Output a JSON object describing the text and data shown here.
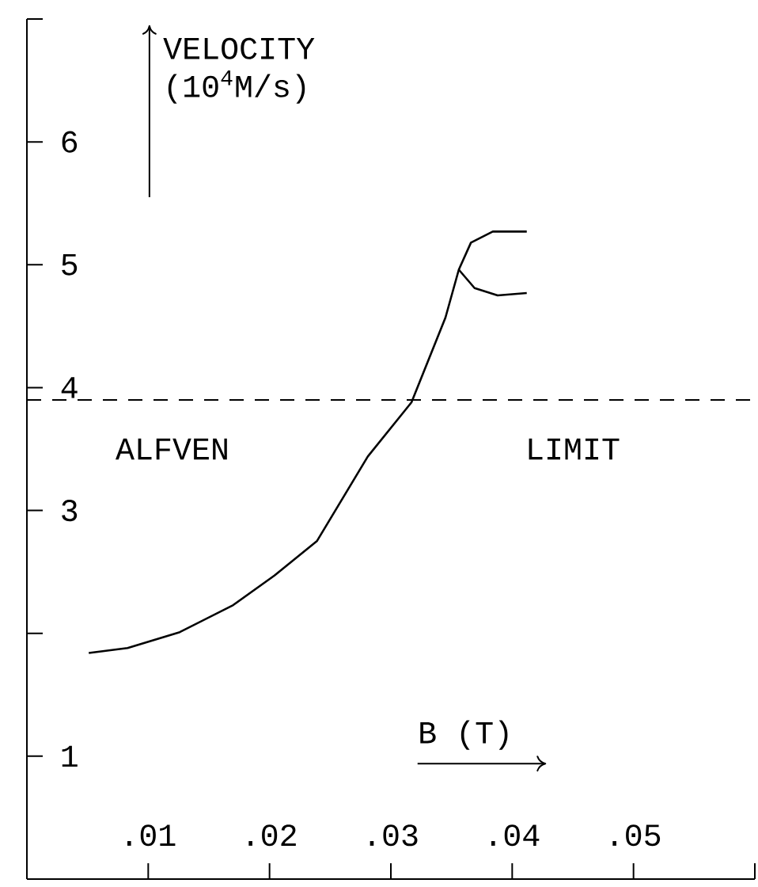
{
  "chart_data": {
    "type": "line",
    "ylabel": "VELOCITY (10$^{4}$M/s)",
    "xlabel": "B (T)",
    "xlim": [
      0,
      0.06
    ],
    "xticks": [
      {
        "value": 0.01,
        "label": ".01"
      },
      {
        "value": 0.02,
        "label": ".02"
      },
      {
        "value": 0.03,
        "label": ".03"
      },
      {
        "value": 0.04,
        "label": ".04"
      },
      {
        "value": 0.05,
        "label": ".05"
      },
      {
        "value": 0.06,
        "label": null
      }
    ],
    "ylim": [
      0,
      7
    ],
    "yticks": [
      1,
      {
        "value": 2,
        "label": null
      },
      3,
      4,
      5,
      6,
      {
        "value": 7,
        "label": null
      }
    ],
    "series": [
      {
        "color": "#000000",
        "x": [
          0.0051,
          0.0083,
          0.0126,
          0.017,
          0.0204,
          0.0239,
          0.0281,
          0.0317,
          0.0345,
          0.0356,
          0.0366,
          0.0384,
          0.0412
        ],
        "values": [
          1.84,
          1.88,
          2.01,
          2.23,
          2.47,
          2.75,
          3.44,
          3.88,
          4.57,
          4.96,
          5.18,
          5.27,
          5.27
        ]
      },
      {
        "color": "#000000",
        "x": [
          0.0356,
          0.0369,
          0.0388,
          0.0412
        ],
        "values": [
          4.96,
          4.81,
          4.75,
          4.77
        ]
      }
    ],
    "ref_lines": [
      {
        "axis": "y",
        "value": 3.9,
        "color": "#000000",
        "line_style": "dashed"
      }
    ],
    "annotations": [
      "ALFVEN",
      "LIMIT"
    ],
    "marker": "none",
    "line_style": "solid"
  }
}
